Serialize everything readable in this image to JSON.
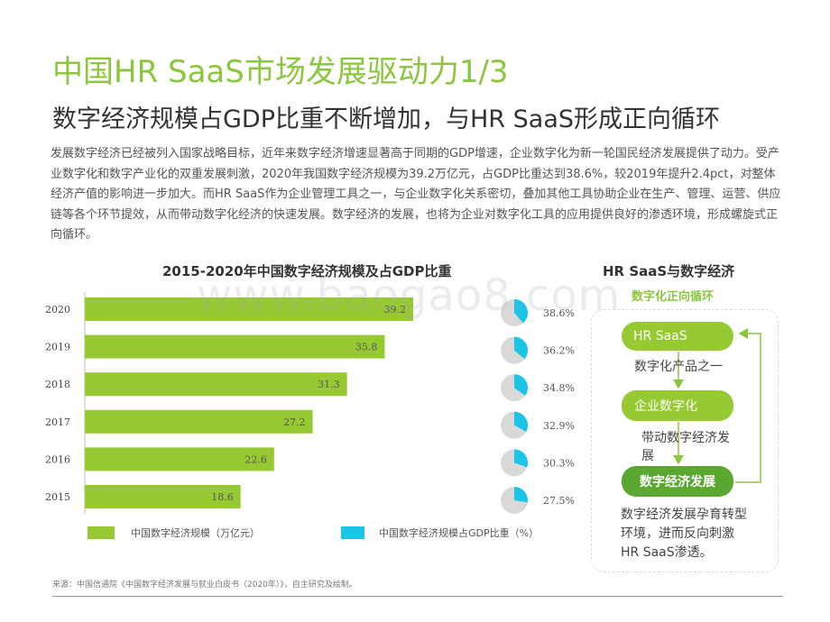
{
  "title": "中国HR SaaS市场发展驱动力1/3",
  "subtitle": "数字经济规模占GDP比重不断增加，与HR SaaS形成正向循环",
  "intro": "发展数字经济已经被列入国家战略目标，近年来数字经济增速显著高于同期的GDP增速，企业数字化为新一轮国民经济发展提供了动力。受产业数字化和数字产业化的双重发展刺激，2020年我国数字经济规模为39.2万亿元，占GDP比重达到38.6%，较2019年提升2.4pct，对整体经济产值的影响进一步加大。而HR SaaS作为企业管理工具之一，与企业数字化关系密切，叠加其他工具协助企业在生产、管理、运营、供应链等各个环节提效，从而带动数字化经济的快速发展。数字经济的发展，也将为企业对数字化工具的应用提供良好的渗透环境，形成螺旋式正向循环。",
  "watermark": "www.baogao8.com",
  "chart_data": {
    "type": "bar",
    "orientation": "horizontal",
    "title": "2015-2020年中国数字经济规模及占GDP比重",
    "categories": [
      "2020",
      "2019",
      "2018",
      "2017",
      "2016",
      "2015"
    ],
    "series": [
      {
        "name": "中国数字经济规模（万亿元）",
        "values": [
          39.2,
          35.8,
          31.3,
          27.2,
          22.6,
          18.6
        ],
        "color": "#97c933"
      },
      {
        "name": "中国数字经济规模占GDP比重（%）",
        "values": [
          38.6,
          36.2,
          34.8,
          32.9,
          30.3,
          27.5
        ],
        "labels": [
          "38.6%",
          "36.2%",
          "34.8%",
          "32.9%",
          "30.3%",
          "27.5%"
        ],
        "color": "#1cc4e6",
        "type": "pie"
      }
    ],
    "value_labels": [
      "39.2",
      "35.8",
      "31.3",
      "27.2",
      "22.6",
      "18.6"
    ],
    "xlim": [
      0,
      45
    ],
    "grid": false,
    "legend": "bottom"
  },
  "colors": {
    "green": "#97c933",
    "cyan": "#1cc4e6",
    "pie_rest": "#d9d9d9",
    "title_green": "#8cc63f",
    "pill_dark": "#5aa832"
  },
  "side": {
    "title": "HR SaaS与数字经济",
    "subtitle": "数字化正向循环",
    "node1": "HR SaaS",
    "text1": "数字化产品之一",
    "node2": "企业数字化",
    "text2": "带动数字经济发展",
    "node3": "数字经济发展",
    "text3": "数字经济发展孕育转型环境，进而反向刺激HR SaaS渗透。"
  },
  "source": "来源：中国信通院《中国数字经济发展与就业白皮书（2020年）》，自主研究及绘制。"
}
